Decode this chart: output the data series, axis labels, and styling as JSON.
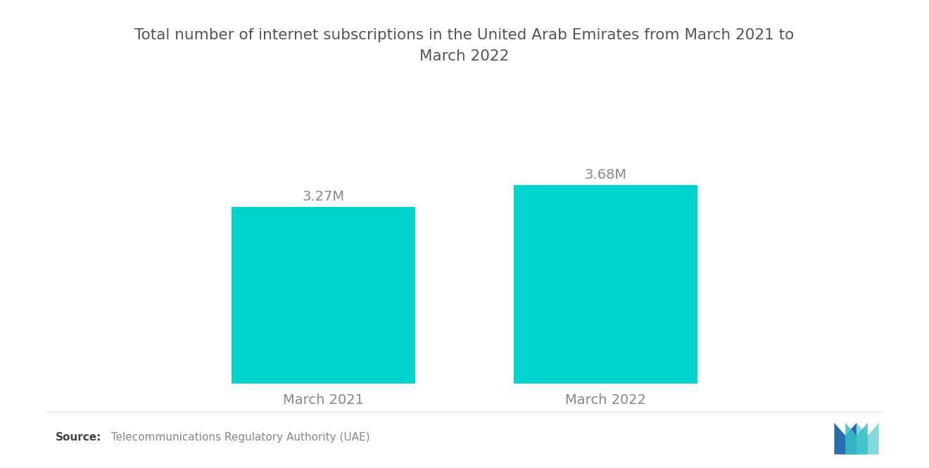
{
  "title": "Total number of internet subscriptions in the United Arab Emirates from March 2021 to\nMarch 2022",
  "categories": [
    "March 2021",
    "March 2022"
  ],
  "values": [
    3.27,
    3.68
  ],
  "labels": [
    "3.27M",
    "3.68M"
  ],
  "bar_color": "#00D4CE",
  "background_color": "#ffffff",
  "title_color": "#555555",
  "label_color": "#888888",
  "source_bold": "Source:",
  "source_text": "  Telecommunications Regulatory Authority (UAE)",
  "source_color": "#888888",
  "ylim": [
    0,
    4.5
  ],
  "bar_width": 0.65,
  "title_fontsize": 15.5,
  "label_fontsize": 14,
  "tick_fontsize": 14,
  "source_fontsize": 11
}
